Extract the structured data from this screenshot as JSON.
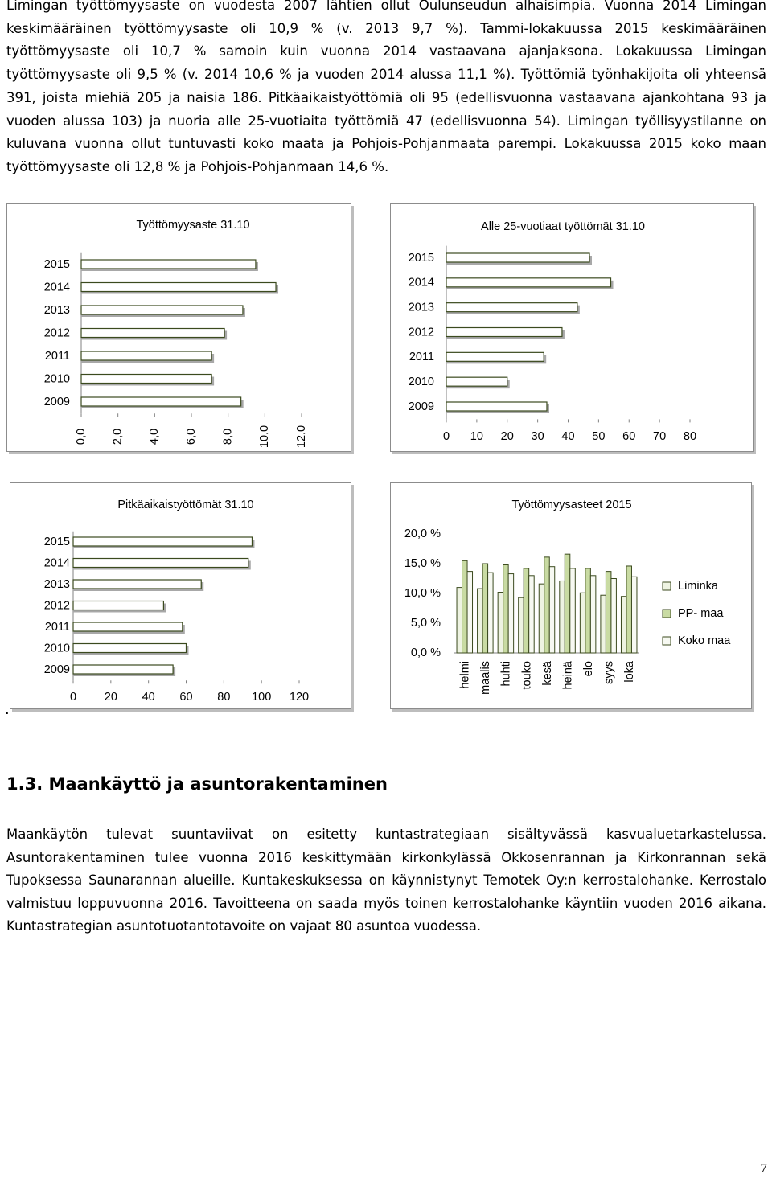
{
  "intro": "Limingan työttömyysaste on vuodesta 2007 lähtien ollut Oulunseudun alhaisimpia. Vuonna 2014 Limingan keskimääräinen työttömyysaste oli 10,9 % (v. 2013 9,7 %). Tammi-lokakuussa 2015 keskimääräinen työttömyysaste oli 10,7 % samoin kuin vuonna 2014 vastaavana ajanjaksona. Lokakuussa Limingan työttömyysaste oli 9,5 % (v. 2014 10,6 % ja vuoden 2014 alussa 11,1 %). Työttömiä työnhakijoita oli yhteensä 391, joista miehiä 205 ja naisia 186. Pitkäaikaistyöttömiä oli 95 (edellisvuonna vastaavana ajankohtana 93 ja vuoden alussa 103) ja nuoria alle 25-vuotiaita työttömiä 47 (edellisvuonna 54). Limingan työllisyystilanne on kuluvana vuonna ollut tuntuvasti koko maata ja Pohjois-Pohjanmaata parempi. Lokakuussa 2015 koko maan työttömyysaste oli 12,8 % ja Pohjois-Pohjanmaan 14,6 %.",
  "chart_data": [
    {
      "type": "hbar",
      "title": "Työttömyysaste 31.10",
      "color": "#ffffff",
      "categories": [
        "2015",
        "2014",
        "2013",
        "2012",
        "2011",
        "2010",
        "2009"
      ],
      "values": [
        9.5,
        10.6,
        8.8,
        7.8,
        7.1,
        7.1,
        8.7
      ],
      "xlim": [
        0,
        12
      ],
      "xticks": [
        {
          "value": 0,
          "label": "0,0"
        },
        {
          "value": 2,
          "label": "2,0"
        },
        {
          "value": 4,
          "label": "4,0"
        },
        {
          "value": 6,
          "label": "6,0"
        },
        {
          "value": 8,
          "label": "8,0"
        },
        {
          "value": 10,
          "label": "10,0"
        },
        {
          "value": 12,
          "label": "12,0"
        }
      ]
    },
    {
      "type": "hbar",
      "title": "Alle 25-vuotiaat työttömät 31.10",
      "color": "#ffffff",
      "categories": [
        "2015",
        "2014",
        "2013",
        "2012",
        "2011",
        "2010",
        "2009"
      ],
      "values": [
        47,
        54,
        43,
        38,
        32,
        20,
        33
      ],
      "xlim": [
        0,
        80
      ],
      "xticks": [
        0,
        10,
        20,
        30,
        40,
        50,
        60,
        70,
        80
      ]
    },
    {
      "type": "hbar",
      "title": "Pitkäaikaistyöttömät 31.10",
      "color": "#ffffff",
      "categories": [
        "2015",
        "2014",
        "2013",
        "2012",
        "2011",
        "2010",
        "2009"
      ],
      "values": [
        95,
        93,
        68,
        48,
        58,
        60,
        53
      ],
      "xlim": [
        0,
        120
      ],
      "xticks": [
        0,
        20,
        40,
        60,
        80,
        100,
        120
      ]
    },
    {
      "type": "bar",
      "title": "Työttömyysasteet 2015",
      "categories": [
        "helmi",
        "maalis",
        "huhti",
        "touko",
        "kesä",
        "heinä",
        "elo",
        "syys",
        "loka"
      ],
      "series": [
        {
          "name": "Liminka",
          "color": "#eef3e2",
          "values": [
            11.0,
            10.8,
            10.2,
            9.3,
            11.6,
            12.1,
            10.1,
            9.7,
            9.5
          ]
        },
        {
          "name": "PP- maa",
          "color": "#c9dba3",
          "values": [
            15.5,
            15.0,
            14.8,
            14.2,
            16.1,
            16.6,
            14.2,
            13.7,
            14.6
          ]
        },
        {
          "name": "Koko maa",
          "color": "#f7f9f2",
          "values": [
            13.7,
            13.5,
            13.3,
            13.0,
            14.5,
            14.2,
            13.0,
            12.5,
            12.8
          ]
        }
      ],
      "ylim": [
        0,
        20
      ],
      "yticks": [
        {
          "value": 0,
          "label": "0,0 %"
        },
        {
          "value": 5,
          "label": "5,0 %"
        },
        {
          "value": 10,
          "label": "10,0 %"
        },
        {
          "value": 15,
          "label": "15,0 %"
        },
        {
          "value": 20,
          "label": "20,0 %"
        }
      ],
      "legend": "right"
    }
  ],
  "dot": ".",
  "heading": "1.3. Maankäyttö ja asuntorakentaminen",
  "body": "Maankäytön tulevat suuntaviivat on esitetty kuntastrategiaan sisältyvässä kasvualuetarkastelussa. Asuntorakentaminen tulee vuonna 2016 keskittymään kirkonkylässä Okkosenrannan ja Kirkonrannan sekä Tupoksessa Saunarannan alueille. Kuntakeskuksessa on käynnistynyt Temotek Oy:n kerrostalohanke. Kerrostalo valmistuu loppuvuonna 2016. Tavoitteena on saada myös toinen kerrostalohanke käyntiin vuoden 2016 aikana. Kuntastrategian asuntotuotantotavoite on vajaat 80 asuntoa vuodessa.",
  "page_number": "7"
}
